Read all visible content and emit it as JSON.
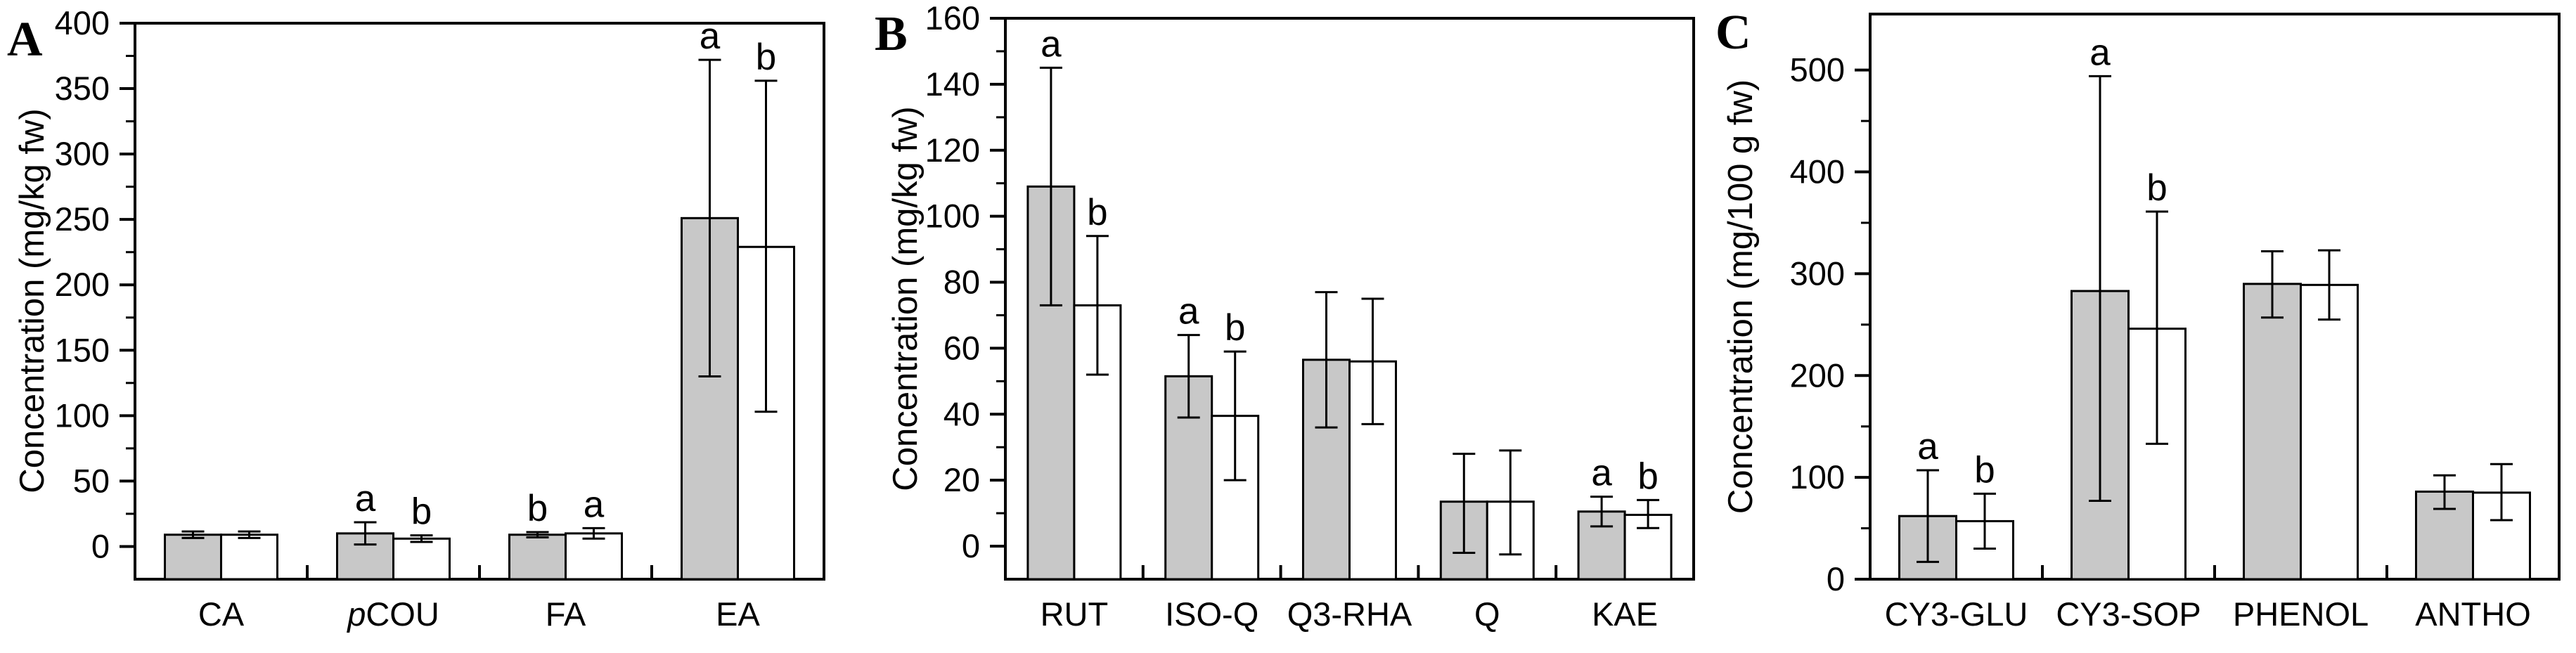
{
  "figure": {
    "background_color": "#ffffff",
    "line_color": "#000000",
    "filled_bar_color": "#c8c8c8",
    "open_bar_color": "#ffffff"
  },
  "chart_data": [
    {
      "type": "bar",
      "panel_label": "A",
      "ylabel": "Concentration (mg/kg fw)",
      "ylim": [
        -25,
        400
      ],
      "yticks": [
        0,
        50,
        100,
        150,
        200,
        250,
        300,
        350,
        400
      ],
      "yticks_minor": [
        25,
        75,
        125,
        175,
        225,
        275,
        325,
        375
      ],
      "grid": false,
      "legend": "none",
      "categories": [
        "CA",
        "pCOU",
        "FA",
        "EA"
      ],
      "italic_first_char_categories": [
        "pCOU"
      ],
      "series": [
        {
          "name": "filled",
          "fill": "#c8c8c8",
          "values": [
            9,
            10,
            9,
            251
          ],
          "err_lo": [
            6.5,
            1.5,
            7,
            130
          ],
          "err_hi": [
            11.5,
            18.5,
            11,
            372
          ],
          "letters": [
            "",
            "a",
            "b",
            "a"
          ]
        },
        {
          "name": "open",
          "fill": "#ffffff",
          "values": [
            9,
            6,
            10,
            229
          ],
          "err_lo": [
            6.5,
            3.5,
            6,
            103
          ],
          "err_hi": [
            11.5,
            8.5,
            14,
            356
          ],
          "letters": [
            "",
            "b",
            "a",
            "b"
          ]
        }
      ]
    },
    {
      "type": "bar",
      "panel_label": "B",
      "ylabel": "Concentration (mg/kg fw)",
      "ylim": [
        -10,
        160
      ],
      "yticks": [
        0,
        20,
        40,
        60,
        80,
        100,
        120,
        140,
        160
      ],
      "yticks_minor": [
        10,
        30,
        50,
        70,
        90,
        110,
        130,
        150
      ],
      "grid": false,
      "legend": "none",
      "categories": [
        "RUT",
        "ISO-Q",
        "Q3-RHA",
        "Q",
        "KAE"
      ],
      "italic_first_char_categories": [],
      "series": [
        {
          "name": "filled",
          "fill": "#c8c8c8",
          "values": [
            109,
            51.5,
            56.5,
            13.5,
            10.5
          ],
          "err_lo": [
            73,
            39,
            36,
            -2,
            6
          ],
          "err_hi": [
            145,
            64,
            77,
            28,
            15
          ],
          "letters": [
            "a",
            "a",
            "",
            "",
            "a"
          ]
        },
        {
          "name": "open",
          "fill": "#ffffff",
          "values": [
            73,
            39.5,
            56,
            13.5,
            9.5
          ],
          "err_lo": [
            52,
            20,
            37,
            -2.5,
            5.5
          ],
          "err_hi": [
            94,
            59,
            75,
            29,
            14
          ],
          "letters": [
            "b",
            "b",
            "",
            "",
            "b"
          ]
        }
      ]
    },
    {
      "type": "bar",
      "panel_label": "C",
      "ylabel": "Concentration (mg/100 g fw)",
      "ylim": [
        0,
        555
      ],
      "yticks": [
        0,
        100,
        200,
        300,
        400,
        500
      ],
      "yticks_minor": [
        50,
        150,
        250,
        350,
        450
      ],
      "grid": false,
      "legend": "none",
      "categories": [
        "CY3-GLU",
        "CY3-SOP",
        "PHENOL",
        "ANTHO"
      ],
      "italic_first_char_categories": [],
      "series": [
        {
          "name": "filled",
          "fill": "#c8c8c8",
          "values": [
            62,
            283,
            290,
            86
          ],
          "err_lo": [
            17,
            77,
            257,
            69
          ],
          "err_hi": [
            107,
            494,
            322,
            102
          ],
          "letters": [
            "a",
            "a",
            "",
            ""
          ]
        },
        {
          "name": "open",
          "fill": "#ffffff",
          "values": [
            57,
            246,
            289,
            85
          ],
          "err_lo": [
            30,
            133,
            255,
            58
          ],
          "err_hi": [
            84,
            361,
            323,
            113
          ],
          "letters": [
            "b",
            "b",
            "",
            ""
          ]
        }
      ]
    }
  ]
}
